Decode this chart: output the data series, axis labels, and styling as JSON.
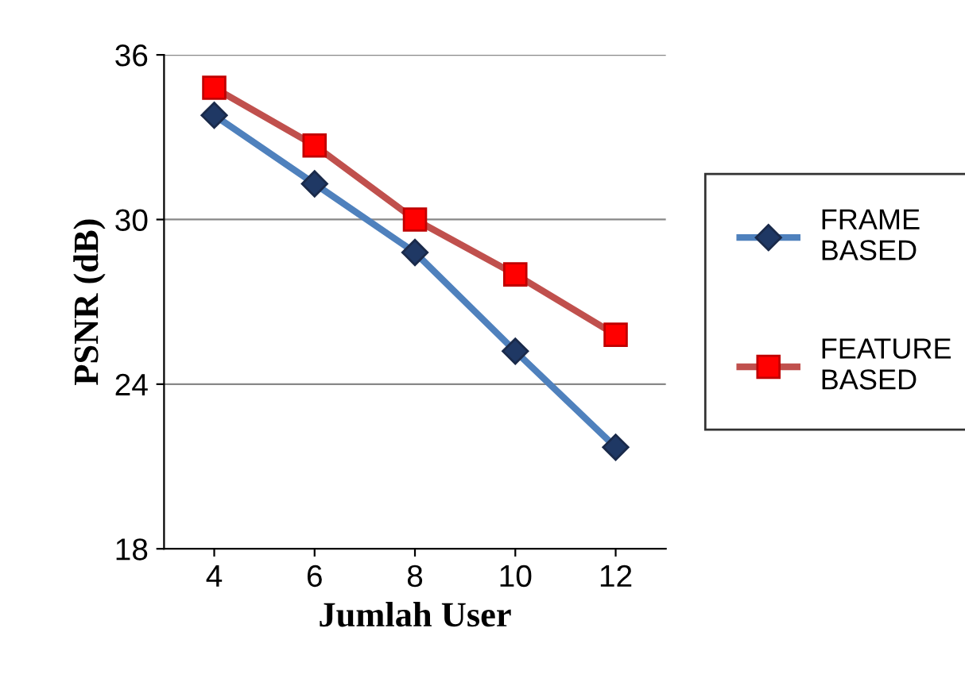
{
  "chart_data": {
    "type": "line",
    "xlabel": "Jumlah User",
    "ylabel": "PSNR (dB)",
    "categories": [
      "4",
      "6",
      "8",
      "10",
      "12"
    ],
    "series": [
      {
        "name": "FRAME BASED",
        "color": "#4f81bd",
        "marker": "diamond",
        "values": [
          33.8,
          31.3,
          28.8,
          25.2,
          21.7
        ]
      },
      {
        "name": "FEATURE BASED",
        "color": "#c0504d",
        "marker": "square",
        "values": [
          34.8,
          32.7,
          30.0,
          28.0,
          25.8
        ]
      }
    ],
    "ylim": [
      18,
      36
    ],
    "yticks": [
      18,
      24,
      30,
      36
    ],
    "grid": "y",
    "legend": "right"
  }
}
